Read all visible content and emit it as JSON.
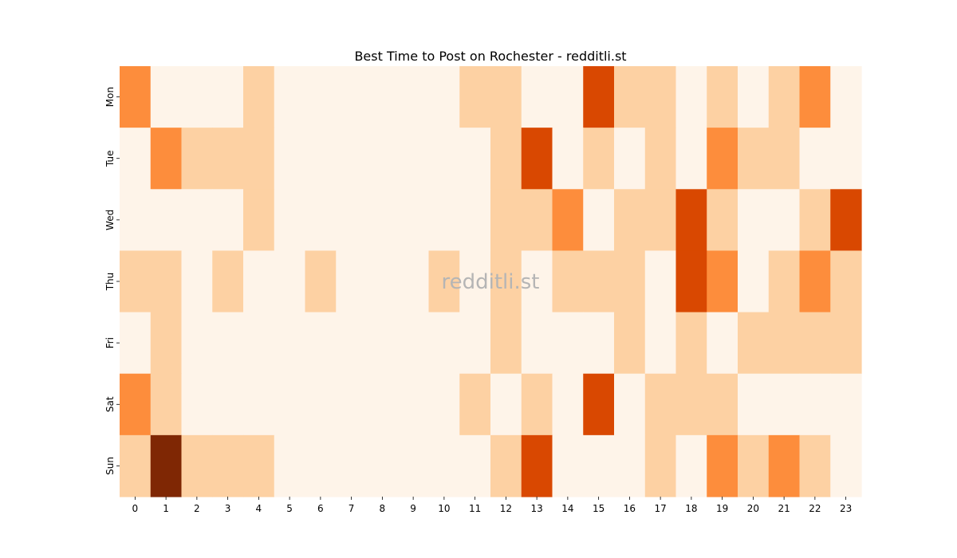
{
  "chart_data": {
    "type": "heatmap",
    "title": "Best Time to Post on Rochester - redditli.st",
    "watermark": "redditli.st",
    "x": [
      "0",
      "1",
      "2",
      "3",
      "4",
      "5",
      "6",
      "7",
      "8",
      "9",
      "10",
      "11",
      "12",
      "13",
      "14",
      "15",
      "16",
      "17",
      "18",
      "19",
      "20",
      "21",
      "22",
      "23"
    ],
    "y": [
      "Mon",
      "Tue",
      "Wed",
      "Thu",
      "Fri",
      "Sat",
      "Sun"
    ],
    "colormap": [
      "#fef4e9",
      "#fdd1a3",
      "#fd8d3c",
      "#d94801",
      "#7f2704"
    ],
    "values": [
      [
        2,
        0,
        0,
        0,
        1,
        0,
        0,
        0,
        0,
        0,
        0,
        1,
        1,
        0,
        0,
        3,
        1,
        1,
        0,
        1,
        0,
        1,
        2,
        0
      ],
      [
        0,
        2,
        1,
        1,
        1,
        0,
        0,
        0,
        0,
        0,
        0,
        0,
        1,
        3,
        0,
        1,
        0,
        1,
        0,
        2,
        1,
        1,
        0,
        0
      ],
      [
        0,
        0,
        0,
        0,
        1,
        0,
        0,
        0,
        0,
        0,
        0,
        0,
        1,
        1,
        2,
        0,
        1,
        1,
        3,
        1,
        0,
        0,
        1,
        3
      ],
      [
        1,
        1,
        0,
        1,
        0,
        0,
        1,
        0,
        0,
        0,
        1,
        0,
        1,
        0,
        1,
        1,
        1,
        0,
        3,
        2,
        0,
        1,
        2,
        1
      ],
      [
        0,
        1,
        0,
        0,
        0,
        0,
        0,
        0,
        0,
        0,
        0,
        0,
        1,
        0,
        0,
        0,
        1,
        0,
        1,
        0,
        1,
        1,
        1,
        1
      ],
      [
        2,
        1,
        0,
        0,
        0,
        0,
        0,
        0,
        0,
        0,
        0,
        1,
        0,
        1,
        0,
        3,
        0,
        1,
        1,
        1,
        0,
        0,
        0,
        0
      ],
      [
        1,
        4,
        1,
        1,
        1,
        0,
        0,
        0,
        0,
        0,
        0,
        0,
        1,
        3,
        0,
        0,
        0,
        1,
        0,
        2,
        1,
        2,
        1,
        0
      ]
    ]
  }
}
